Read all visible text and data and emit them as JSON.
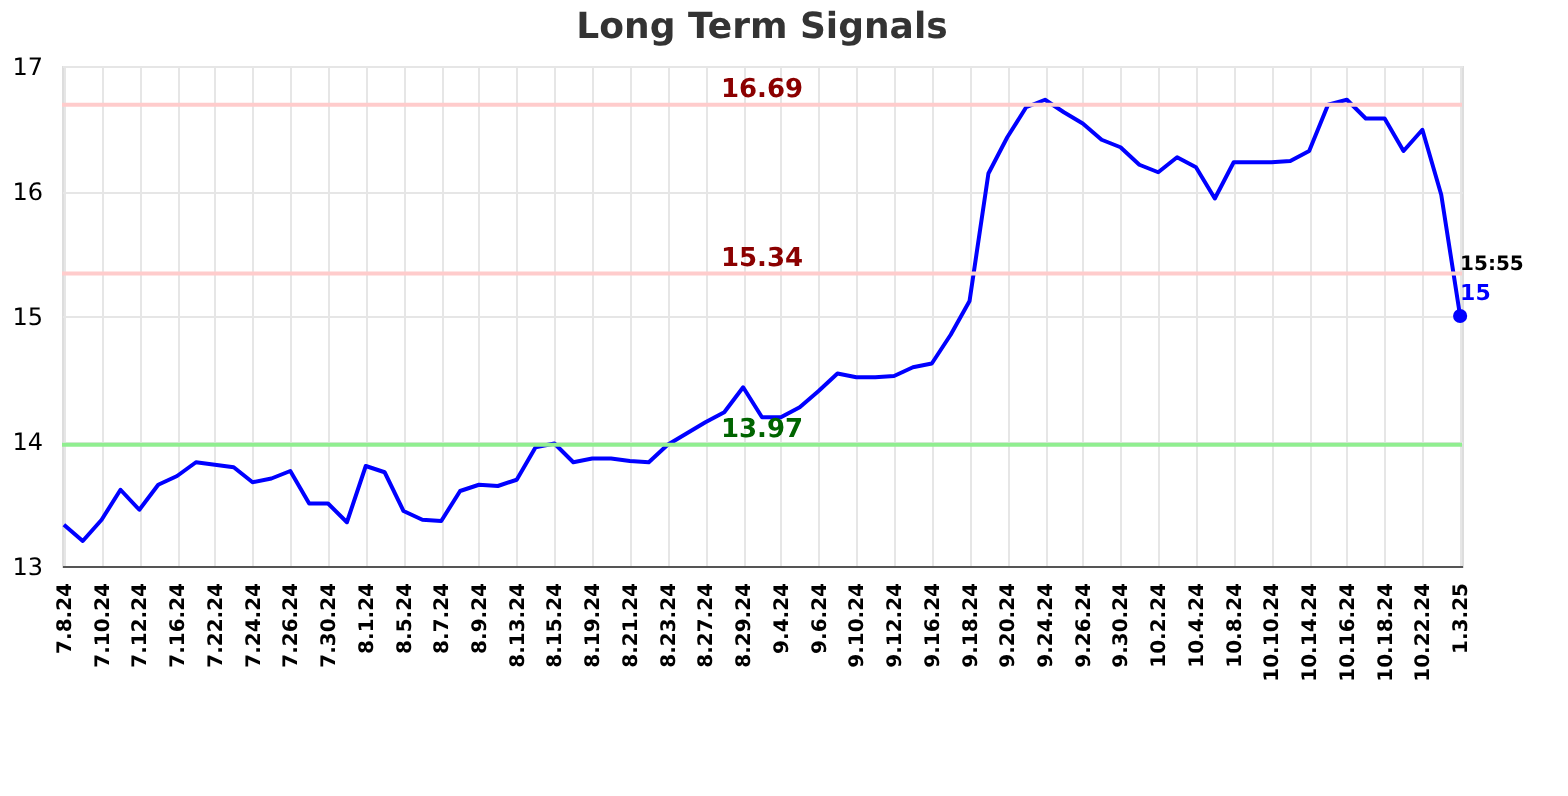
{
  "chart_data": {
    "type": "line",
    "title": "Long Term Signals",
    "categories": [
      "7.8.24",
      null,
      "7.10.24",
      null,
      "7.12.24",
      null,
      "7.16.24",
      null,
      "7.22.24",
      null,
      "7.24.24",
      null,
      "7.26.24",
      null,
      "7.30.24",
      null,
      "8.1.24",
      null,
      "8.5.24",
      null,
      "8.7.24",
      null,
      "8.9.24",
      null,
      "8.13.24",
      null,
      "8.15.24",
      null,
      "8.19.24",
      null,
      "8.21.24",
      null,
      "8.23.24",
      null,
      "8.27.24",
      null,
      "8.29.24",
      null,
      "9.4.24",
      null,
      "9.6.24",
      null,
      "9.10.24",
      null,
      "9.12.24",
      null,
      "9.16.24",
      null,
      "9.18.24",
      null,
      "9.20.24",
      null,
      "9.24.24",
      null,
      "9.26.24",
      null,
      "9.30.24",
      null,
      "10.2.24",
      null,
      "10.4.24",
      null,
      "10.8.24",
      null,
      "10.10.24",
      null,
      "10.14.24",
      null,
      "10.16.24",
      null,
      "10.18.24",
      null,
      "10.22.24",
      null,
      "1.3.25"
    ],
    "series": [
      {
        "color": "#0000ff",
        "values": [
          13.33,
          13.2,
          13.37,
          13.61,
          13.45,
          13.65,
          13.72,
          13.83,
          13.81,
          13.79,
          13.67,
          13.7,
          13.76,
          13.5,
          13.5,
          13.35,
          13.8,
          13.75,
          13.44,
          13.37,
          13.36,
          13.6,
          13.65,
          13.64,
          13.69,
          13.95,
          13.98,
          13.83,
          13.86,
          13.86,
          13.84,
          13.83,
          13.97,
          14.06,
          14.15,
          14.23,
          14.43,
          14.19,
          14.19,
          14.27,
          14.4,
          14.54,
          14.51,
          14.51,
          14.52,
          14.59,
          14.62,
          14.85,
          15.12,
          16.14,
          16.43,
          16.67,
          16.73,
          16.63,
          16.54,
          16.41,
          16.35,
          16.21,
          16.15,
          16.27,
          16.19,
          15.94,
          16.23,
          16.23,
          16.23,
          16.24,
          16.32,
          16.69,
          16.73,
          16.58,
          16.58,
          16.32,
          16.49,
          15.97,
          15.0
        ],
        "value_labels": [
          null,
          null,
          null,
          null,
          null,
          null,
          null,
          null,
          null,
          null,
          null,
          null,
          null,
          null,
          null,
          null,
          null,
          null,
          null,
          null,
          null,
          null,
          null,
          null,
          null,
          null,
          null,
          null,
          null,
          null,
          null,
          null,
          null,
          null,
          null,
          null,
          null,
          null,
          null,
          null,
          null,
          null,
          null,
          null,
          null,
          null,
          null,
          null,
          null,
          null,
          null,
          null,
          null,
          null,
          null,
          null,
          null,
          null,
          null,
          null,
          null,
          null,
          null,
          null,
          null,
          null,
          null,
          null,
          null,
          null,
          null,
          null,
          null,
          null,
          "15"
        ]
      }
    ],
    "ylim": [
      13,
      17
    ],
    "yticks": [
      13,
      14,
      15,
      16,
      17
    ],
    "grid": true,
    "marker": "none",
    "line_style": "solid",
    "ref_lines": [
      {
        "axis": "y",
        "value": 16.69,
        "label": "16.69",
        "color": "#ffcccc"
      },
      {
        "axis": "y",
        "value": 15.34,
        "label": "15.34",
        "color": "#ffcccc"
      },
      {
        "axis": "y",
        "value": 13.97,
        "label": "13.97",
        "color": "#90ee90"
      }
    ],
    "annotations": [
      {
        "text": "15:55",
        "x": "1.3.25",
        "y": 15
      }
    ]
  }
}
